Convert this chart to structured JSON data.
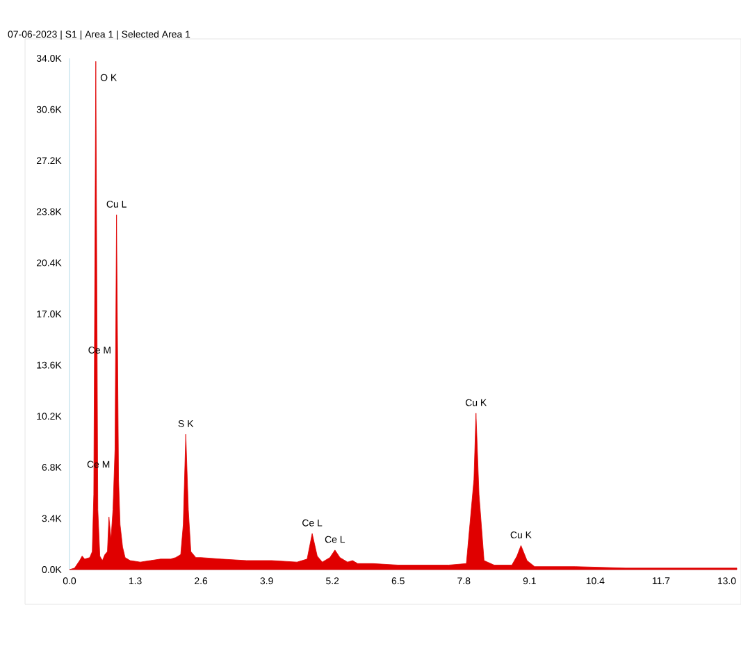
{
  "chart_data": {
    "type": "area",
    "title": "07-06-2023 | S1 | Area 1 | Selected Area 1",
    "color": "#e00000",
    "x": [
      0.0,
      0.1,
      0.2,
      0.25,
      0.3,
      0.4,
      0.45,
      0.48,
      0.52,
      0.56,
      0.6,
      0.65,
      0.7,
      0.75,
      0.78,
      0.82,
      0.86,
      0.9,
      0.93,
      0.97,
      1.0,
      1.05,
      1.1,
      1.2,
      1.4,
      1.6,
      1.8,
      2.0,
      2.1,
      2.2,
      2.25,
      2.3,
      2.35,
      2.4,
      2.5,
      2.6,
      3.0,
      3.5,
      4.0,
      4.5,
      4.7,
      4.8,
      4.9,
      5.0,
      5.15,
      5.25,
      5.35,
      5.5,
      5.6,
      5.7,
      6.0,
      6.5,
      7.0,
      7.5,
      7.85,
      8.0,
      8.04,
      8.1,
      8.2,
      8.4,
      8.75,
      8.85,
      8.93,
      9.05,
      9.2,
      10.0,
      11.0,
      12.0,
      13.2
    ],
    "values": [
      0,
      100,
      600,
      900,
      700,
      800,
      1200,
      5000,
      33800,
      4000,
      900,
      600,
      1000,
      1200,
      3500,
      2000,
      4000,
      8000,
      23600,
      6000,
      3000,
      1500,
      800,
      600,
      500,
      600,
      700,
      700,
      800,
      1000,
      3000,
      9000,
      4000,
      1200,
      800,
      800,
      700,
      600,
      600,
      500,
      700,
      2400,
      900,
      500,
      800,
      1300,
      800,
      500,
      600,
      400,
      400,
      300,
      300,
      300,
      400,
      6000,
      10400,
      5000,
      600,
      300,
      300,
      900,
      1600,
      600,
      200,
      200,
      100,
      100,
      100
    ],
    "xlim": [
      0,
      13.2
    ],
    "ylim": [
      0,
      34000
    ],
    "xticks": [
      {
        "value": 0,
        "label": "0.0"
      },
      1.3,
      2.6,
      3.9,
      5.2,
      6.5,
      7.8,
      9.1,
      10.4,
      11.7,
      {
        "value": 13,
        "label": "13.0"
      }
    ],
    "yticks": [
      {
        "value": 0,
        "label": "0.0K"
      },
      {
        "value": 3400,
        "label": "3.4K"
      },
      {
        "value": 6800,
        "label": "6.8K"
      },
      {
        "value": 10200,
        "label": "10.2K"
      },
      {
        "value": 13600,
        "label": "13.6K"
      },
      {
        "value": 17000,
        "label": "17.0K"
      },
      {
        "value": 20400,
        "label": "20.4K"
      },
      {
        "value": 23800,
        "label": "23.8K"
      },
      {
        "value": 27200,
        "label": "27.2K"
      },
      {
        "value": 30600,
        "label": "30.6K"
      },
      {
        "value": 34000,
        "label": "34.0K"
      }
    ],
    "annotations": [
      {
        "text": "O K",
        "x": 0.52,
        "y": 33800
      },
      {
        "text": "Cu L",
        "x": 0.93,
        "y": 23600
      },
      {
        "text": "Ce M",
        "x": 0.913,
        "y": 14600
      },
      {
        "text": "Ce M",
        "x": 0.89,
        "y": 7000
      },
      {
        "text": "S K",
        "x": 2.3,
        "y": 9000
      },
      {
        "text": "Ce L",
        "x": 4.8,
        "y": 2400
      },
      {
        "text": "Ce L",
        "x": 5.25,
        "y": 1300
      },
      {
        "text": "Cu K",
        "x": 8.04,
        "y": 10400
      },
      {
        "text": "Cu K",
        "x": 8.93,
        "y": 1600
      }
    ]
  }
}
